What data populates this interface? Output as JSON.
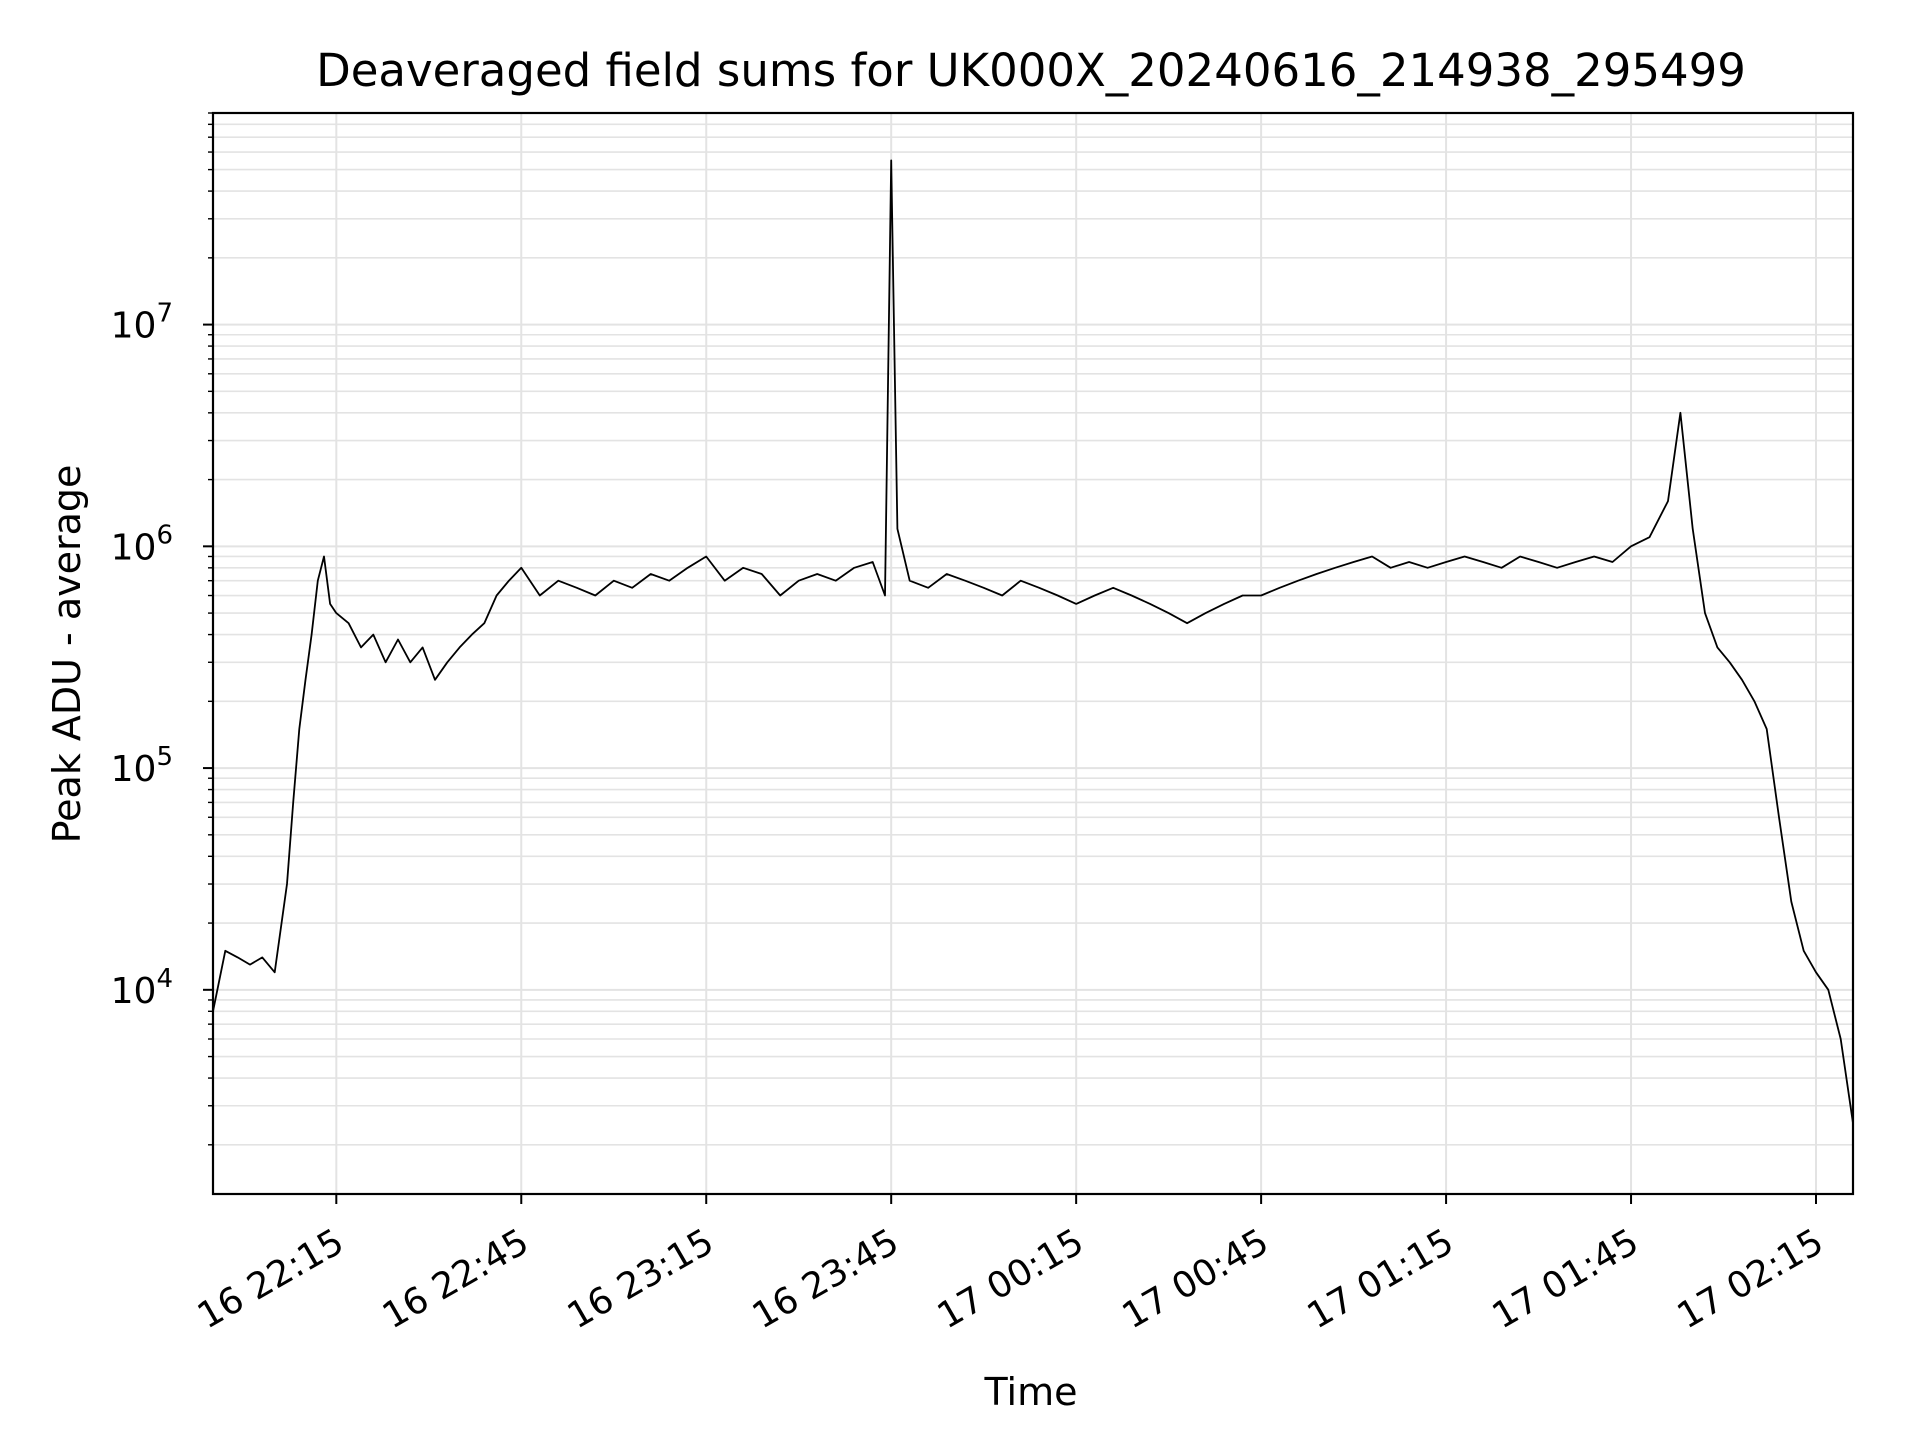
{
  "chart_data": {
    "type": "line",
    "title": "Deaveraged field sums for UK000X_20240616_214938_295499",
    "xlabel": "Time",
    "ylabel": "Peak ADU - average",
    "y_scale": "log",
    "ylim": [
      1200,
      90000000
    ],
    "xlim": [
      "2024-06-16 21:55",
      "2024-06-17 02:21"
    ],
    "grid": true,
    "line_color": "#000000",
    "grid_color": "#e3e3e3",
    "x_ticks": [
      {
        "value": "2024-06-16 22:15",
        "label": "16 22:15"
      },
      {
        "value": "2024-06-16 22:45",
        "label": "16 22:45"
      },
      {
        "value": "2024-06-16 23:15",
        "label": "16 23:15"
      },
      {
        "value": "2024-06-16 23:45",
        "label": "16 23:45"
      },
      {
        "value": "2024-06-17 00:15",
        "label": "17 00:15"
      },
      {
        "value": "2024-06-17 00:45",
        "label": "17 00:45"
      },
      {
        "value": "2024-06-17 01:15",
        "label": "17 01:15"
      },
      {
        "value": "2024-06-17 01:45",
        "label": "17 01:45"
      },
      {
        "value": "2024-06-17 02:15",
        "label": "17 02:15"
      }
    ],
    "y_ticks": [
      {
        "value": 10000,
        "base": "10",
        "exp": "4"
      },
      {
        "value": 100000,
        "base": "10",
        "exp": "5"
      },
      {
        "value": 1000000,
        "base": "10",
        "exp": "6"
      },
      {
        "value": 10000000,
        "base": "10",
        "exp": "7"
      }
    ],
    "series": [
      {
        "x": [
          "2024-06-16 21:55",
          "2024-06-16 21:57",
          "2024-06-16 21:59",
          "2024-06-16 22:01",
          "2024-06-16 22:03",
          "2024-06-16 22:05",
          "2024-06-16 22:07",
          "2024-06-16 22:08",
          "2024-06-16 22:09",
          "2024-06-16 22:10",
          "2024-06-16 22:11",
          "2024-06-16 22:12",
          "2024-06-16 22:13",
          "2024-06-16 22:14",
          "2024-06-16 22:15",
          "2024-06-16 22:17",
          "2024-06-16 22:19",
          "2024-06-16 22:21",
          "2024-06-16 22:23",
          "2024-06-16 22:25",
          "2024-06-16 22:27",
          "2024-06-16 22:29",
          "2024-06-16 22:31",
          "2024-06-16 22:33",
          "2024-06-16 22:35",
          "2024-06-16 22:37",
          "2024-06-16 22:39",
          "2024-06-16 22:41",
          "2024-06-16 22:43",
          "2024-06-16 22:45",
          "2024-06-16 22:48",
          "2024-06-16 22:51",
          "2024-06-16 22:54",
          "2024-06-16 22:57",
          "2024-06-16 23:00",
          "2024-06-16 23:03",
          "2024-06-16 23:06",
          "2024-06-16 23:09",
          "2024-06-16 23:12",
          "2024-06-16 23:15",
          "2024-06-16 23:18",
          "2024-06-16 23:21",
          "2024-06-16 23:24",
          "2024-06-16 23:27",
          "2024-06-16 23:30",
          "2024-06-16 23:33",
          "2024-06-16 23:36",
          "2024-06-16 23:39",
          "2024-06-16 23:42",
          "2024-06-16 23:44",
          "2024-06-16 23:45",
          "2024-06-16 23:46",
          "2024-06-16 23:48",
          "2024-06-16 23:51",
          "2024-06-16 23:54",
          "2024-06-16 23:57",
          "2024-06-17 00:00",
          "2024-06-17 00:03",
          "2024-06-17 00:06",
          "2024-06-17 00:09",
          "2024-06-17 00:12",
          "2024-06-17 00:15",
          "2024-06-17 00:18",
          "2024-06-17 00:21",
          "2024-06-17 00:24",
          "2024-06-17 00:27",
          "2024-06-17 00:30",
          "2024-06-17 00:33",
          "2024-06-17 00:36",
          "2024-06-17 00:39",
          "2024-06-17 00:42",
          "2024-06-17 00:45",
          "2024-06-17 00:48",
          "2024-06-17 00:51",
          "2024-06-17 00:54",
          "2024-06-17 00:57",
          "2024-06-17 01:00",
          "2024-06-17 01:03",
          "2024-06-17 01:06",
          "2024-06-17 01:09",
          "2024-06-17 01:12",
          "2024-06-17 01:15",
          "2024-06-17 01:18",
          "2024-06-17 01:21",
          "2024-06-17 01:24",
          "2024-06-17 01:27",
          "2024-06-17 01:30",
          "2024-06-17 01:33",
          "2024-06-17 01:36",
          "2024-06-17 01:39",
          "2024-06-17 01:42",
          "2024-06-17 01:45",
          "2024-06-17 01:48",
          "2024-06-17 01:51",
          "2024-06-17 01:53",
          "2024-06-17 01:55",
          "2024-06-17 01:57",
          "2024-06-17 01:59",
          "2024-06-17 02:01",
          "2024-06-17 02:03",
          "2024-06-17 02:05",
          "2024-06-17 02:07",
          "2024-06-17 02:09",
          "2024-06-17 02:11",
          "2024-06-17 02:13",
          "2024-06-17 02:15",
          "2024-06-17 02:17",
          "2024-06-17 02:19",
          "2024-06-17 02:21"
        ],
        "y": [
          8000,
          15000,
          14000,
          13000,
          14000,
          12000,
          30000,
          70000,
          150000,
          250000,
          400000,
          700000,
          900000,
          550000,
          500000,
          450000,
          350000,
          400000,
          300000,
          380000,
          300000,
          350000,
          250000,
          300000,
          350000,
          400000,
          450000,
          600000,
          700000,
          800000,
          600000,
          700000,
          650000,
          600000,
          700000,
          650000,
          750000,
          700000,
          800000,
          900000,
          700000,
          800000,
          750000,
          600000,
          700000,
          750000,
          700000,
          800000,
          850000,
          600000,
          55000000,
          1200000,
          700000,
          650000,
          750000,
          700000,
          650000,
          600000,
          700000,
          650000,
          600000,
          550000,
          600000,
          650000,
          600000,
          550000,
          500000,
          450000,
          500000,
          550000,
          600000,
          600000,
          650000,
          700000,
          750000,
          800000,
          850000,
          900000,
          800000,
          850000,
          800000,
          850000,
          900000,
          850000,
          800000,
          900000,
          850000,
          800000,
          850000,
          900000,
          850000,
          1000000,
          1100000,
          1600000,
          4000000,
          1200000,
          500000,
          350000,
          300000,
          250000,
          200000,
          150000,
          60000,
          25000,
          15000,
          12000,
          10000,
          6000,
          2500
        ]
      }
    ]
  }
}
